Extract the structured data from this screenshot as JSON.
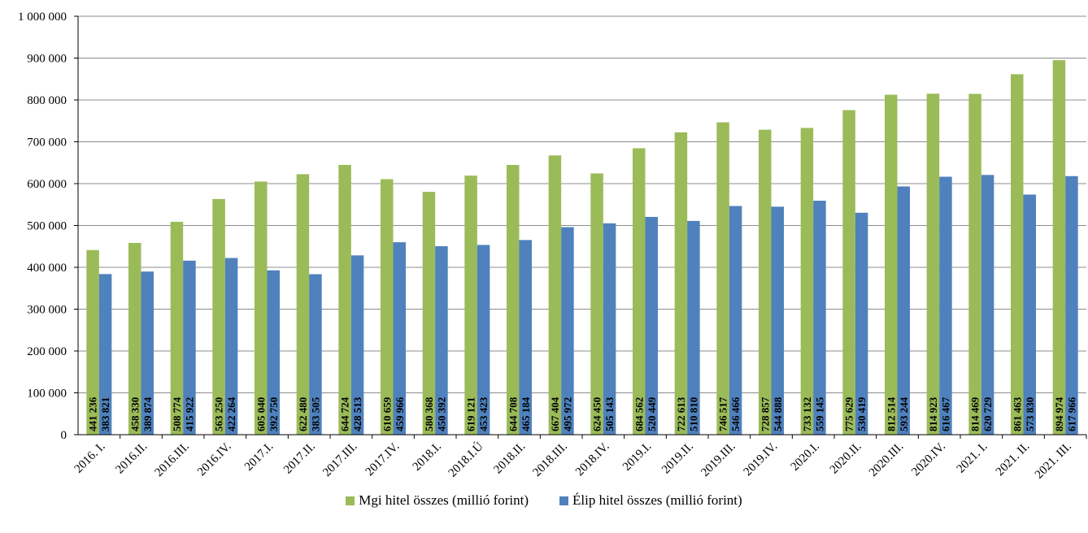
{
  "chart_data": {
    "type": "bar",
    "categories": [
      "2016. I.",
      "2016.II.",
      "2016.III.",
      "2016.IV.",
      "2017.I.",
      "2017.II.",
      "2017.III.",
      "2017.IV.",
      "2018.I.",
      "2018.I.Ú",
      "2018.II.",
      "2018.III.",
      "2018.IV.",
      "2019.I.",
      "2019.II.",
      "2019.III.",
      "2019.IV.",
      "2020.I.",
      "2020.II.",
      "2020.III.",
      "2020.IV.",
      "2021. I.",
      "2021. II.",
      "2021. III."
    ],
    "series": [
      {
        "name": "Mgi hitel összes (millió forint)",
        "color": "#9BBB59",
        "values": [
          441236,
          458330,
          508774,
          563250,
          605040,
          622480,
          644724,
          610659,
          580368,
          619121,
          644708,
          667404,
          624450,
          684562,
          722613,
          746517,
          728857,
          733132,
          775629,
          812514,
          814923,
          814469,
          861463,
          894974
        ],
        "labels": [
          "441 236",
          "458 330",
          "508 774",
          "563 250",
          "605 040",
          "622 480",
          "644 724",
          "610 659",
          "580 368",
          "619 121",
          "644 708",
          "667 404",
          "624 450",
          "684 562",
          "722 613",
          "746 517",
          "728 857",
          "733 132",
          "775 629",
          "812 514",
          "814 923",
          "814 469",
          "861 463",
          "894 974"
        ]
      },
      {
        "name": "Élip hitel összes (millió forint)",
        "color": "#4F81BD",
        "values": [
          383821,
          389874,
          415922,
          422264,
          392750,
          383505,
          428513,
          459966,
          450392,
          453423,
          465184,
          495972,
          505143,
          520449,
          510810,
          546466,
          544888,
          559145,
          530419,
          593244,
          616467,
          620729,
          573830,
          617966
        ],
        "labels": [
          "383 821",
          "389 874",
          "415 922",
          "422 264",
          "392 750",
          "383 505",
          "428 513",
          "459 966",
          "450 392",
          "453 423",
          "465 184",
          "495 972",
          "505 143",
          "520 449",
          "510 810",
          "546 466",
          "544 888",
          "559 145",
          "530 419",
          "593 244",
          "616 467",
          "620 729",
          "573 830",
          "617 966"
        ]
      }
    ],
    "ylim": [
      0,
      1000000
    ],
    "yticks": [
      0,
      100000,
      200000,
      300000,
      400000,
      500000,
      600000,
      700000,
      800000,
      900000,
      1000000
    ],
    "ytick_labels": [
      "0",
      "100 000",
      "200 000",
      "300 000",
      "400 000",
      "500 000",
      "600 000",
      "700 000",
      "800 000",
      "900 000",
      "1 000 000"
    ],
    "grid": true,
    "legend_position": "bottom"
  }
}
